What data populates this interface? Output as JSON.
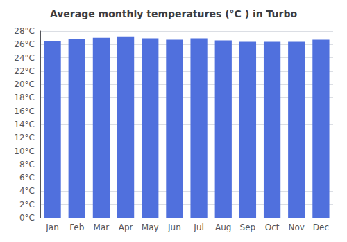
{
  "chart_data": {
    "type": "bar",
    "title": "Average monthly temperatures (°C ) in Turbo",
    "categories": [
      "Jan",
      "Feb",
      "Mar",
      "Apr",
      "May",
      "Jun",
      "Jul",
      "Aug",
      "Sep",
      "Oct",
      "Nov",
      "Dec"
    ],
    "values": [
      26.5,
      26.8,
      27.0,
      27.2,
      26.9,
      26.7,
      26.9,
      26.6,
      26.4,
      26.4,
      26.4,
      26.7
    ],
    "ylim": [
      0,
      28
    ],
    "yticks": [
      {
        "value": 0,
        "label": "0°C"
      },
      {
        "value": 2,
        "label": "2°C"
      },
      {
        "value": 4,
        "label": "4°C"
      },
      {
        "value": 6,
        "label": "6°C"
      },
      {
        "value": 8,
        "label": "8°C"
      },
      {
        "value": 10,
        "label": "10°C"
      },
      {
        "value": 12,
        "label": "12°C"
      },
      {
        "value": 14,
        "label": "14°C"
      },
      {
        "value": 16,
        "label": "16°C"
      },
      {
        "value": 18,
        "label": "18°C"
      },
      {
        "value": 20,
        "label": "20°C"
      },
      {
        "value": 22,
        "label": "22°C"
      },
      {
        "value": 24,
        "label": "24°C"
      },
      {
        "value": 26,
        "label": "26°C"
      },
      {
        "value": 28,
        "label": "28°C"
      }
    ],
    "grid": true
  }
}
